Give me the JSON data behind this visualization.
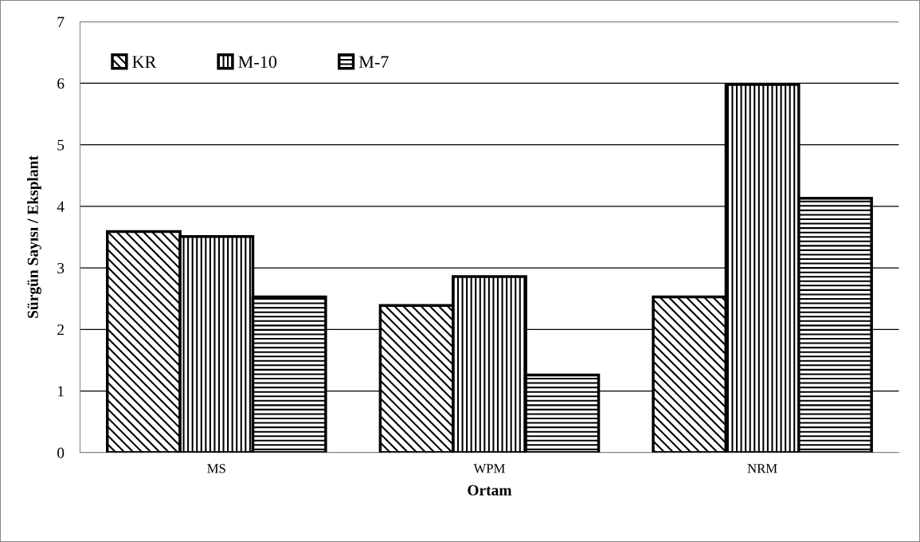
{
  "chart_data": {
    "type": "bar",
    "xlabel": "Ortam",
    "ylabel": "Sürgün Sayısı / Eksplant",
    "categories": [
      "MS",
      "WPM",
      "NRM"
    ],
    "series": [
      {
        "name": "KR",
        "color": "#000000",
        "values": [
          3.59,
          2.39,
          2.53
        ]
      },
      {
        "name": "M-10",
        "color": "#000000",
        "values": [
          3.51,
          2.86,
          5.98
        ]
      },
      {
        "name": "M-7",
        "color": "#000000",
        "values": [
          2.53,
          1.26,
          4.13
        ]
      }
    ],
    "ylim": [
      0,
      7
    ],
    "yticks": [
      0,
      1,
      2,
      3,
      4,
      5,
      6,
      7
    ],
    "grid": "y",
    "legend": "top left"
  }
}
